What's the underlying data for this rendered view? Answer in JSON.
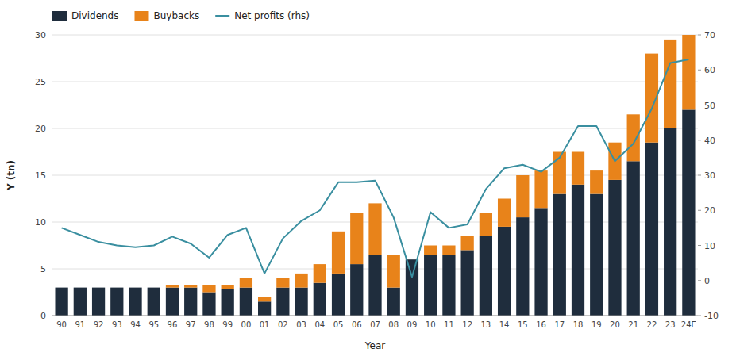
{
  "chart_data": {
    "type": "bar",
    "stacked": true,
    "xlabel": "Year",
    "ylabel": "Y (tn)",
    "categories": [
      "90",
      "91",
      "92",
      "93",
      "94",
      "95",
      "96",
      "97",
      "98",
      "99",
      "00",
      "01",
      "02",
      "03",
      "04",
      "05",
      "06",
      "07",
      "08",
      "09",
      "10",
      "11",
      "12",
      "13",
      "14",
      "15",
      "16",
      "17",
      "18",
      "19",
      "20",
      "21",
      "22",
      "23",
      "24E"
    ],
    "series": [
      {
        "name": "Dividends",
        "color": "#1f2d3d",
        "values": [
          3.0,
          3.0,
          3.0,
          3.0,
          3.0,
          3.0,
          3.0,
          3.0,
          2.5,
          2.8,
          3.0,
          1.5,
          3.0,
          3.0,
          3.5,
          4.5,
          5.5,
          6.5,
          3.0,
          6.0,
          6.5,
          6.5,
          7.0,
          8.5,
          9.5,
          10.5,
          11.5,
          13.0,
          14.0,
          13.0,
          14.5,
          16.5,
          18.5,
          20.0,
          22.0
        ]
      },
      {
        "name": "Buybacks",
        "color": "#e8831a",
        "values": [
          0.0,
          0.0,
          0.0,
          0.0,
          0.0,
          0.0,
          0.3,
          0.3,
          0.8,
          0.5,
          1.0,
          0.5,
          1.0,
          1.5,
          2.0,
          4.5,
          5.5,
          5.5,
          3.5,
          0.0,
          1.0,
          1.0,
          1.5,
          2.5,
          3.0,
          4.5,
          4.0,
          4.5,
          3.5,
          2.5,
          4.0,
          5.0,
          9.5,
          9.5,
          8.0
        ]
      },
      {
        "name": "Net profits (rhs)",
        "type": "line",
        "axis": "y2",
        "color": "#3a8fa0",
        "values": [
          15.0,
          13.0,
          11.0,
          10.0,
          9.5,
          10.0,
          12.5,
          10.5,
          6.5,
          13.0,
          15.0,
          2.0,
          12.0,
          17.0,
          20.0,
          28.0,
          28.0,
          28.5,
          18.0,
          1.0,
          19.5,
          15.0,
          16.0,
          26.0,
          32.0,
          33.0,
          31.0,
          35.0,
          44.0,
          44.0,
          34.0,
          39.0,
          49.0,
          62.0,
          63.0
        ]
      }
    ],
    "ylim": [
      0,
      30
    ],
    "yticks": [
      0,
      5,
      10,
      15,
      20,
      25,
      30
    ],
    "y2lim": [
      -10,
      70
    ],
    "y2ticks": [
      -10,
      0,
      10,
      20,
      30,
      40,
      50,
      60,
      70
    ],
    "grid": true,
    "legend": "top-left"
  }
}
